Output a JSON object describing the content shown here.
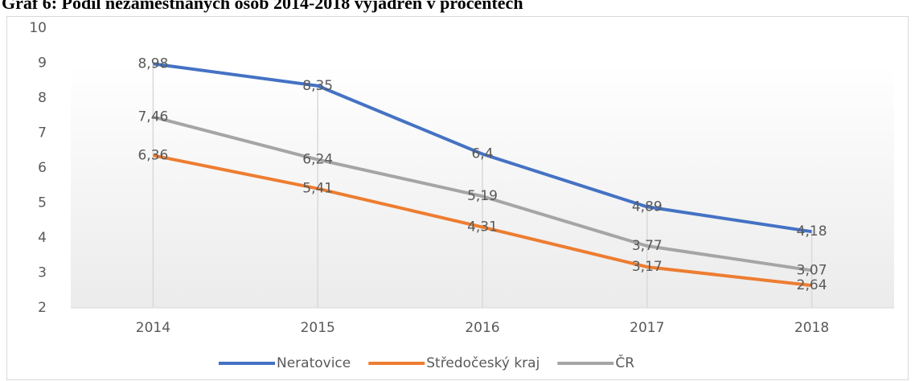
{
  "chart_data": {
    "type": "line",
    "title": "Graf 6: Podíl nezaměstnaných osob 2014-2018 vyjádřen v procentech",
    "categories": [
      "2014",
      "2015",
      "2016",
      "2017",
      "2018"
    ],
    "series": [
      {
        "name": "Neratovice",
        "color": "#4472c4",
        "values": [
          8.98,
          8.35,
          6.4,
          4.89,
          4.18
        ],
        "value_labels": [
          "8,98",
          "8,35",
          "6,4",
          "4,89",
          "4,18"
        ]
      },
      {
        "name": "Středočeský kraj",
        "color": "#ed7d31",
        "values": [
          6.36,
          5.41,
          4.31,
          3.17,
          2.64
        ],
        "value_labels": [
          "6,36",
          "5,41",
          "4,31",
          "3,17",
          "2,64"
        ]
      },
      {
        "name": "ČR",
        "color": "#a5a5a5",
        "values": [
          7.46,
          6.24,
          5.19,
          3.77,
          3.07
        ],
        "value_labels": [
          "7,46",
          "6,24",
          "5,19",
          "3,77",
          "3,07"
        ]
      }
    ],
    "ylim": [
      2,
      10
    ],
    "yticks": [
      2,
      3,
      4,
      5,
      6,
      7,
      8,
      9,
      10
    ],
    "legend": "bottom"
  }
}
